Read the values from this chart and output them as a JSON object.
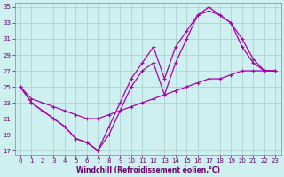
{
  "xlabel": "Windchill (Refroidissement éolien,°C)",
  "bg_color": "#cef0f0",
  "grid_color": "#aacccc",
  "line_color": "#aa00aa",
  "xlim_min": -0.5,
  "xlim_max": 23.5,
  "ylim_min": 16.5,
  "ylim_max": 35.5,
  "yticks": [
    17,
    19,
    21,
    23,
    25,
    27,
    29,
    31,
    33,
    35
  ],
  "xticks": [
    0,
    1,
    2,
    3,
    4,
    5,
    6,
    7,
    8,
    9,
    10,
    11,
    12,
    13,
    14,
    15,
    16,
    17,
    18,
    19,
    20,
    21,
    22,
    23
  ],
  "series": [
    {
      "x": [
        0,
        1,
        2,
        3,
        4,
        5,
        6,
        7,
        8,
        9,
        10,
        11,
        12,
        13,
        14,
        15,
        16,
        17,
        18,
        19,
        20,
        21,
        22,
        23
      ],
      "y": [
        25,
        23.5,
        23,
        22.5,
        22,
        21.5,
        21,
        21,
        21.5,
        22,
        22.5,
        23,
        23.5,
        24,
        24.5,
        25,
        25.5,
        26,
        26,
        26.5,
        27,
        27,
        27,
        27
      ]
    },
    {
      "x": [
        0,
        1,
        2,
        3,
        4,
        5,
        6,
        7,
        8,
        9,
        10,
        11,
        12,
        13,
        14,
        15,
        16,
        17,
        18,
        19,
        20,
        21,
        22,
        23
      ],
      "y": [
        25,
        23,
        22,
        21,
        20,
        18.5,
        18,
        17,
        19,
        22,
        25,
        27,
        28,
        24,
        28,
        31,
        34,
        35,
        34,
        33,
        30,
        28,
        27,
        27
      ]
    },
    {
      "x": [
        0,
        1,
        2,
        3,
        4,
        5,
        6,
        7,
        8,
        9,
        10,
        11,
        12,
        13,
        14,
        15,
        16,
        17,
        18,
        19,
        20,
        21,
        22,
        23
      ],
      "y": [
        25,
        23,
        22,
        21,
        20,
        18.5,
        18,
        17,
        20,
        23,
        26,
        28,
        30,
        26,
        30,
        32,
        34,
        34.5,
        34,
        33,
        31,
        28.5,
        27,
        27
      ]
    }
  ],
  "xlabel_fontsize": 5.5,
  "tick_fontsize": 5.0,
  "linewidth": 0.9,
  "markersize": 3.5
}
